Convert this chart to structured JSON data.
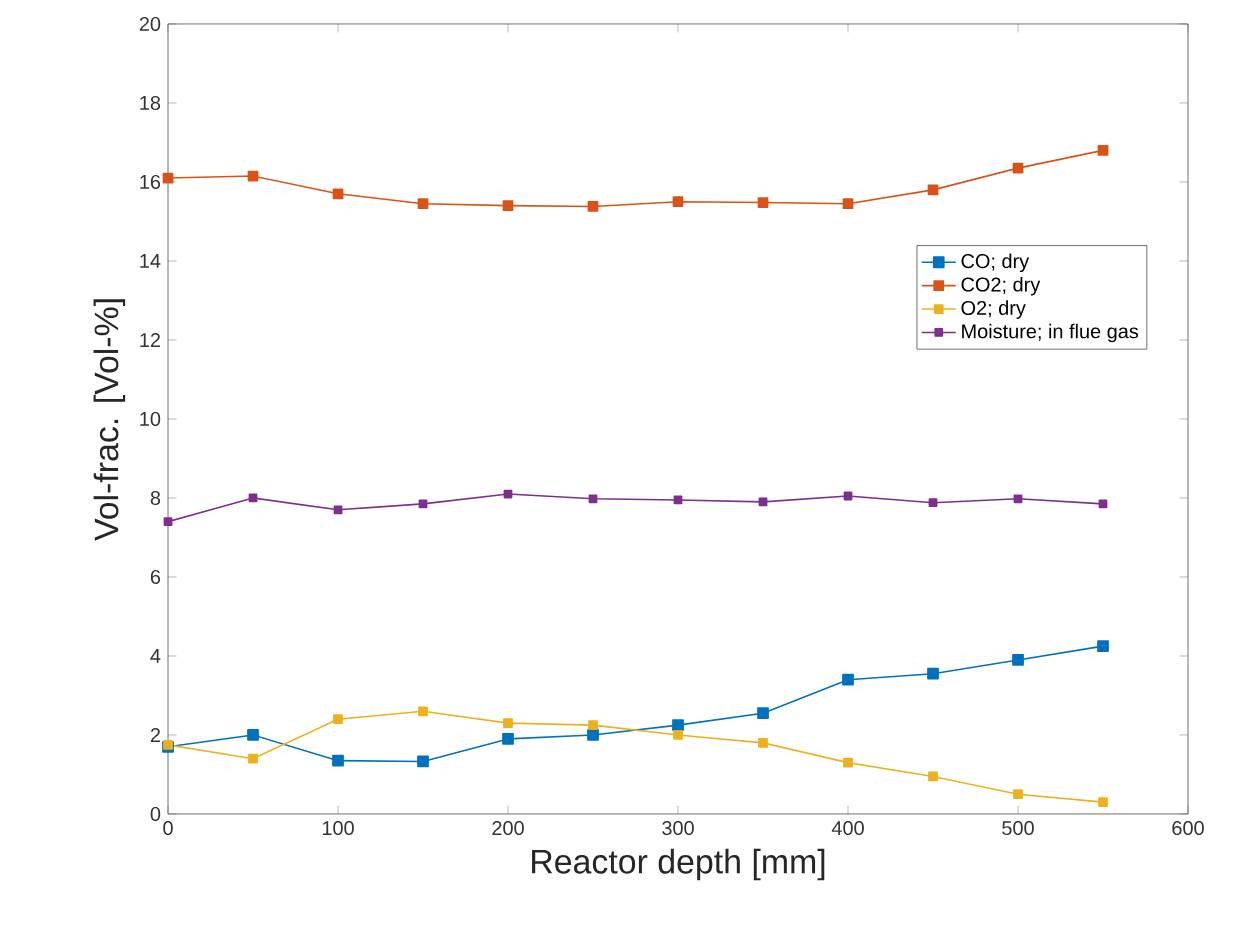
{
  "chart_data": {
    "type": "line",
    "xlabel": "Reactor depth [mm]",
    "ylabel": "Vol-frac. [Vol-%]",
    "x": [
      0,
      50,
      100,
      150,
      200,
      250,
      300,
      350,
      400,
      450,
      500,
      550
    ],
    "series": [
      {
        "name": "CO; dry",
        "color": "#0072bd",
        "values": [
          1.7,
          2.0,
          1.35,
          1.33,
          1.9,
          2.0,
          2.25,
          2.55,
          3.4,
          3.55,
          3.9,
          4.25
        ]
      },
      {
        "name": "CO2; dry",
        "color": "#d95319",
        "values": [
          16.1,
          16.15,
          15.7,
          15.45,
          15.4,
          15.38,
          15.5,
          15.48,
          15.45,
          15.8,
          16.35,
          16.8
        ]
      },
      {
        "name": "O2; dry",
        "color": "#edb120",
        "values": [
          1.75,
          1.4,
          2.4,
          2.6,
          2.3,
          2.25,
          2.0,
          1.8,
          1.3,
          0.95,
          0.5,
          0.3
        ]
      },
      {
        "name": "Moisture; in flue gas",
        "color": "#7e2f8e",
        "values": [
          7.4,
          8.0,
          7.7,
          7.85,
          8.1,
          7.98,
          7.95,
          7.9,
          8.05,
          7.88,
          7.98,
          7.85
        ]
      }
    ],
    "xlim": [
      0,
      600
    ],
    "ylim": [
      0,
      20
    ],
    "xticks": [
      0,
      100,
      200,
      300,
      400,
      500,
      600
    ],
    "yticks": [
      0,
      2,
      4,
      6,
      8,
      10,
      12,
      14,
      16,
      18,
      20
    ],
    "legend": "right",
    "marker": "square",
    "line_style": "solid",
    "grid": false
  }
}
